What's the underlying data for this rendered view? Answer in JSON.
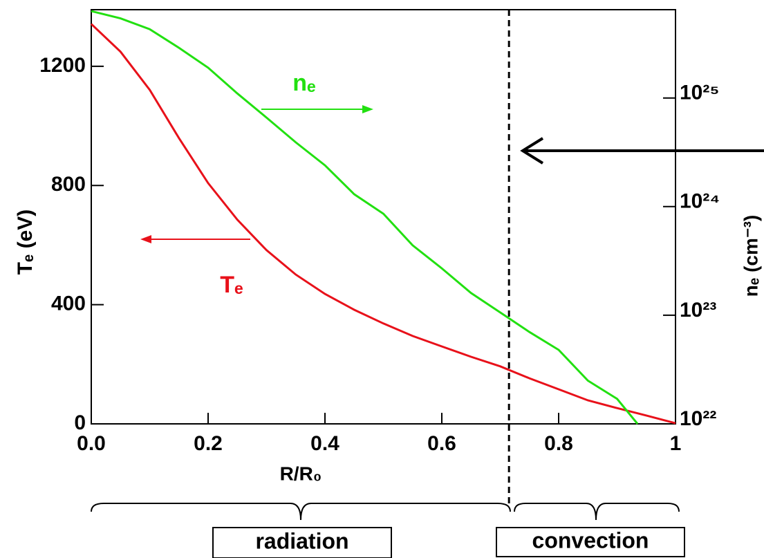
{
  "chart_data": {
    "type": "line",
    "xlabel": "R/R₀",
    "ylabel": "Tₑ (eV)",
    "y2label": "nₑ (cm⁻³)",
    "xlim": [
      0,
      1
    ],
    "xticks": [
      {
        "value": 0,
        "label": "0.0"
      },
      0.2,
      0.4,
      0.6,
      0.8,
      1
    ],
    "ylim": [
      0,
      1390
    ],
    "yticks": [
      0,
      400,
      800,
      1200
    ],
    "y2lim": [
      1e+22,
      6.5e+25
    ],
    "y2log": true,
    "y2ticks": [
      {
        "value": 1e+22,
        "label": "10²²"
      },
      {
        "value": 1e+23,
        "label": "10²³"
      },
      {
        "value": 1e+24,
        "label": "10²⁴"
      },
      {
        "value": 1e+25,
        "label": "10²⁵"
      }
    ],
    "series": [
      {
        "name": "Tₑ",
        "color": "#e8111a",
        "x": [
          0,
          0.05,
          0.1,
          0.15,
          0.2,
          0.25,
          0.3,
          0.35,
          0.4,
          0.45,
          0.5,
          0.55,
          0.6,
          0.65,
          0.7,
          0.75,
          0.8,
          0.85,
          0.9,
          0.95,
          1.0
        ],
        "values": [
          1342,
          1249,
          1121,
          959,
          808,
          685,
          583,
          501,
          436,
          383,
          337,
          295,
          260,
          225,
          193,
          153,
          116,
          79,
          53,
          28,
          2
        ]
      },
      {
        "name": "nₑ",
        "color": "#22e011",
        "axis": "y2",
        "x": [
          0,
          0.05,
          0.1,
          0.15,
          0.2,
          0.25,
          0.3,
          0.35,
          0.4,
          0.45,
          0.5,
          0.55,
          0.6,
          0.65,
          0.7,
          0.75,
          0.8,
          0.85,
          0.9,
          0.935
        ],
        "values": [
          6.3e+25,
          5.4e+25,
          4.3e+25,
          2.9e+25,
          1.9e+25,
          1.1e+25,
          6.6e+24,
          3.9e+24,
          2.4e+24,
          1.3e+24,
          8.6e+23,
          4.4e+23,
          2.7e+23,
          1.6e+23,
          1.06e+23,
          7e+22,
          4.8e+22,
          2.5e+22,
          1.7e+22,
          1e+22
        ]
      }
    ],
    "vline": 0.715,
    "regions": [
      "radiation",
      "convection"
    ]
  }
}
